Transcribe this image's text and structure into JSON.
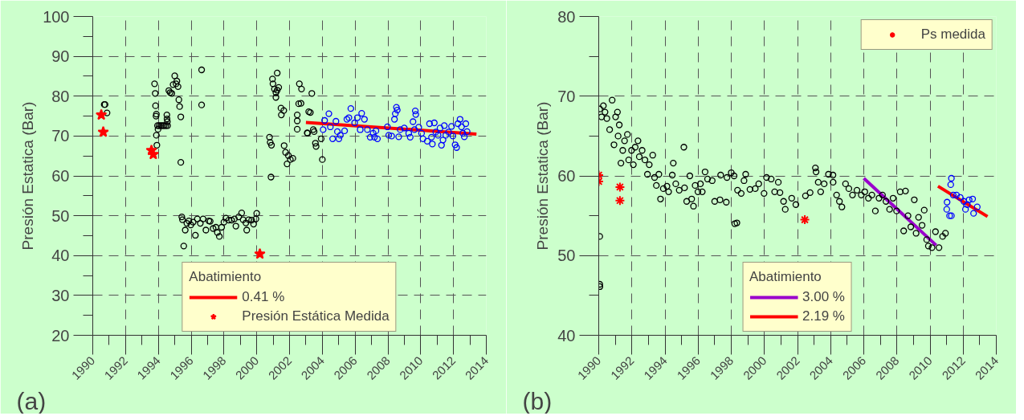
{
  "chart_data": [
    {
      "type": "scatter",
      "ylabel": "Presión Estatica (Bar)",
      "annotations": [
        "(a)"
      ],
      "xlim": [
        1990,
        2014
      ],
      "xticks": [
        1990,
        1992,
        1994,
        1996,
        1998,
        2000,
        2002,
        2004,
        2006,
        2008,
        2010,
        2012,
        2014
      ],
      "ylim": [
        20,
        100
      ],
      "yticks": [
        20,
        30,
        40,
        50,
        60,
        70,
        80,
        90,
        100
      ],
      "grid": true,
      "legend": "bottom",
      "legend_title": "Abatimiento",
      "series": [
        {
          "marker": "circle",
          "color": "#000000",
          "x": [
            1990.7,
            1990.75,
            1990.87,
            1993.77,
            1993.81,
            1993.83,
            1993.86,
            1993.88,
            1993.95,
            1994.05,
            1994.15,
            1994.25,
            1994.35,
            1994.45,
            1994.56,
            1993.98,
            1993.88,
            1993.91,
            1994.52,
            1994.53,
            1994.55,
            1994.64,
            1994.72,
            1994.82,
            1995.0,
            1995.13,
            1995.08,
            1994.9,
            1995.2,
            1995.25,
            1995.3,
            1995.37,
            1995.37,
            1996.64,
            1996.64,
            1995.43,
            1995.47,
            1995.55,
            1995.64,
            1995.74,
            1995.86,
            1995.98,
            1996.12,
            1996.26,
            1996.38,
            1996.56,
            1996.73,
            1996.9,
            1997.08,
            1997.16,
            1997.34,
            1997.51,
            1997.6,
            1997.72,
            1997.86,
            1998.0,
            1998.12,
            1998.3,
            1998.47,
            1998.64,
            1998.73,
            1998.9,
            1999.08,
            1999.17,
            1999.34,
            1999.39,
            1999.51,
            1999.69,
            1999.81,
            1999.95,
            2000.0,
            2000.78,
            2000.82,
            2000.9,
            2000.87,
            2000.96,
            2001.25,
            2000.99,
            2001.08,
            2001.17,
            2001.25,
            2001.34,
            2001.17,
            2001.48,
            2001.65,
            2001.5,
            2001.67,
            2001.76,
            2001.85,
            2001.93,
            2002.05,
            2002.2,
            2002.6,
            2002.73,
            2002.56,
            2002.7,
            2002.47,
            2002.47,
            2002.47,
            2003.08,
            2003.17,
            2003.36,
            2003.27,
            2003.1,
            2003.45,
            2003.5,
            2003.58,
            2003.62,
            2003.93,
            2004.0
          ],
          "values": [
            77.9,
            77.9,
            75.8,
            83.1,
            80.7,
            77.6,
            75.0,
            75.5,
            72.6,
            72.6,
            72.6,
            72.6,
            72.6,
            72.6,
            72.6,
            71.7,
            70.2,
            67.7,
            75.3,
            74.3,
            73.6,
            81.4,
            80.9,
            80.7,
            85.1,
            83.8,
            83.1,
            82.9,
            82.4,
            79.1,
            77.4,
            74.8,
            63.4,
            86.6,
            77.8,
            49.7,
            49.0,
            42.4,
            46.4,
            48.1,
            48.7,
            47.7,
            48.4,
            45.1,
            49.2,
            48.1,
            49.2,
            46.4,
            48.7,
            48.6,
            46.8,
            47.1,
            45.8,
            44.8,
            47.1,
            48.4,
            49.4,
            48.9,
            48.9,
            49.2,
            47.4,
            49.7,
            50.7,
            49.0,
            48.2,
            46.4,
            49.0,
            48.9,
            47.9,
            49.2,
            50.6,
            69.7,
            68.4,
            67.7,
            59.7,
            84.3,
            85.8,
            83.1,
            81.8,
            80.9,
            81.5,
            82.2,
            79.7,
            77.0,
            76.4,
            75.3,
            67.6,
            65.9,
            63.0,
            65.1,
            64.1,
            64.4,
            83.1,
            81.8,
            78.1,
            78.2,
            75.3,
            73.8,
            71.7,
            70.8,
            76.1,
            80.7,
            75.9,
            70.7,
            71.6,
            71.1,
            68.2,
            67.4,
            69.3,
            64.1
          ]
        },
        {
          "marker": "circle",
          "color": "#0000ff",
          "x": [
            2004.14,
            2004.4,
            2004.05,
            2004.49,
            2004.63,
            2004.83,
            2004.92,
            2005.1,
            2005.01,
            2005.36,
            2005.5,
            2005.62,
            2005.74,
            2005.97,
            2006.14,
            2006.4,
            2006.31,
            2006.57,
            2006.75,
            2006.92,
            2007.1,
            2007.27,
            2007.36,
            2007.18,
            2007.97,
            2008.05,
            2008.23,
            2008.4,
            2008.45,
            2008.52,
            2008.57,
            2008.66,
            2008.75,
            2009.0,
            2009.27,
            2009.36,
            2009.53,
            2009.67,
            2009.7,
            2009.62,
            2009.88,
            2010.05,
            2010.14,
            2010.4,
            2010.54,
            2010.66,
            2010.71,
            2010.83,
            2010.92,
            2011.06,
            2011.18,
            2011.27,
            2011.36,
            2011.44,
            2011.53,
            2011.7,
            2011.88,
            2011.96,
            2012.1,
            2012.19,
            2012.27,
            2012.4,
            2012.49,
            2012.57,
            2012.66,
            2012.75,
            2012.83
          ],
          "values": [
            73.9,
            75.6,
            71.6,
            72.3,
            69.3,
            73.7,
            71.1,
            70.2,
            69.3,
            71.3,
            74.2,
            74.6,
            76.9,
            73.3,
            74.6,
            75.7,
            71.6,
            74.2,
            71.6,
            69.7,
            70.7,
            71.3,
            69.3,
            69.7,
            72.3,
            70.2,
            70.0,
            74.2,
            75.6,
            77.2,
            76.5,
            69.8,
            71.6,
            72.0,
            70.7,
            69.7,
            73.6,
            76.3,
            75.4,
            71.6,
            72.2,
            70.7,
            69.3,
            68.7,
            73.1,
            69.7,
            68.0,
            73.3,
            71.0,
            70.2,
            72.0,
            67.7,
            69.0,
            72.6,
            70.2,
            71.0,
            72.4,
            70.0,
            67.8,
            67.1,
            73.1,
            74.2,
            72.3,
            70.7,
            69.8,
            73.1,
            71.1
          ]
        },
        {
          "marker": "star",
          "name": "Presión Estática Medida",
          "color": "#ff0000",
          "x": [
            1990.52,
            1990.64,
            1993.58,
            1993.69,
            2000.19
          ],
          "values": [
            75.3,
            71.0,
            66.4,
            65.4,
            40.4
          ]
        },
        {
          "type": "line",
          "name": "0.41 %",
          "color": "#ff0000",
          "x": [
            2003.0,
            2013.4
          ],
          "values": [
            73.4,
            70.5
          ]
        }
      ]
    },
    {
      "type": "scatter",
      "ylabel": "Presión Estatica (Bar)",
      "annotations": [
        "(b)"
      ],
      "xlim": [
        1990,
        2014
      ],
      "xticks": [
        1990,
        1992,
        1994,
        1996,
        1998,
        2000,
        2002,
        2004,
        2006,
        2008,
        2010,
        2012,
        2014
      ],
      "ylim": [
        40,
        80
      ],
      "yticks": [
        40,
        50,
        60,
        70,
        80
      ],
      "grid": true,
      "legend": [
        "top right",
        "bottom"
      ],
      "legend_title": "Abatimiento",
      "series": [
        {
          "marker": "circle",
          "color": "#000000",
          "x": [
            1990.06,
            1990.06,
            1990.07,
            1990.06,
            1990.28,
            1990.17,
            1990.38,
            1990.49,
            1990.66,
            1990.81,
            1990.92,
            1991.02,
            1991.13,
            1991.24,
            1991.17,
            1991.34,
            1991.45,
            1991.56,
            1991.73,
            1991.81,
            1991.98,
            1992.09,
            1992.2,
            1992.37,
            1992.45,
            1992.62,
            1992.79,
            1992.94,
            1993.05,
            1993.26,
            1993.37,
            1993.48,
            1993.63,
            1993.73,
            1993.9,
            1994.12,
            1994.22,
            1994.44,
            1994.5,
            1994.65,
            1994.86,
            1995.14,
            1995.18,
            1995.31,
            1995.5,
            1995.61,
            1995.72,
            1995.82,
            1995.99,
            1996.14,
            1996.25,
            1996.42,
            1996.57,
            1996.85,
            1997.0,
            1997.32,
            1997.36,
            1997.7,
            1997.74,
            1998.0,
            1998.17,
            1998.21,
            1998.34,
            1998.38,
            1998.6,
            1998.77,
            1998.87,
            1999.13,
            1999.45,
            1999.66,
            1999.98,
            2000.13,
            2000.41,
            2000.62,
            2000.84,
            2000.94,
            2001.16,
            2001.26,
            2001.65,
            2001.9,
            2002.48,
            2002.76,
            2003.08,
            2003.12,
            2003.25,
            2003.4,
            2003.61,
            2003.87,
            2004.14,
            2004.15,
            2004.36,
            2004.53,
            2004.68,
            2004.9,
            2005.1,
            2005.32,
            2005.59,
            2005.85,
            2006.06,
            2006.28,
            2006.49,
            2006.7,
            2006.92,
            2007.13,
            2007.34,
            2007.56,
            2007.77,
            2007.98,
            2008.2,
            2008.41,
            2008.52,
            2008.67,
            2008.84,
            2009.05,
            2009.16,
            2009.31,
            2009.52,
            2009.65,
            2009.8,
            2009.9,
            2010.12,
            2010.33,
            2010.54,
            2010.76,
            2010.93
          ],
          "values": [
            52.4,
            46.4,
            46.1,
            68.4,
            68.8,
            67.4,
            68.0,
            67.2,
            65.8,
            69.5,
            63.9,
            67.4,
            68.0,
            66.4,
            65.0,
            61.6,
            63.2,
            64.4,
            65.2,
            62.0,
            63.2,
            61.4,
            63.6,
            64.4,
            62.4,
            63.2,
            62.0,
            60.2,
            61.4,
            62.6,
            59.8,
            58.8,
            60.2,
            57.1,
            58.4,
            58.7,
            58.0,
            60.1,
            61.6,
            59.0,
            58.2,
            63.6,
            58.5,
            56.8,
            60.0,
            57.1,
            56.2,
            58.8,
            58.0,
            59.0,
            58.0,
            60.5,
            59.6,
            59.4,
            56.8,
            57.0,
            60.1,
            56.7,
            59.8,
            60.4,
            60.0,
            54.0,
            54.1,
            58.2,
            57.8,
            59.4,
            60.2,
            58.3,
            58.4,
            59.0,
            57.8,
            59.8,
            59.6,
            58.0,
            59.2,
            57.9,
            56.8,
            55.8,
            57.2,
            56.4,
            57.5,
            57.9,
            61.0,
            60.5,
            59.2,
            58.0,
            59.0,
            60.2,
            60.1,
            59.2,
            57.6,
            56.8,
            56.1,
            59.0,
            58.4,
            57.6,
            58.2,
            57.6,
            58.0,
            57.2,
            57.6,
            55.6,
            57.2,
            57.6,
            56.8,
            55.8,
            57.2,
            55.6,
            58.0,
            53.1,
            58.1,
            55.0,
            53.6,
            57.0,
            52.8,
            54.8,
            53.8,
            55.7,
            52.0,
            51.2,
            51.0,
            53.0,
            51.0,
            52.4,
            52.8
          ]
        },
        {
          "marker": "circle",
          "color": "#0000ff",
          "x": [
            2011.29,
            2011.25,
            2011.01,
            2011.18,
            2011.03,
            2011.4,
            2011.6,
            2011.82,
            2012.04,
            2012.14,
            2012.36,
            2012.57,
            2012.63,
            2012.85,
            2012.25,
            2011.29
          ],
          "values": [
            59.7,
            58.9,
            55.8,
            55.0,
            56.7,
            57.6,
            57.6,
            57.3,
            56.8,
            55.8,
            57.0,
            57.1,
            55.3,
            56.1,
            56.4,
            55.0
          ]
        },
        {
          "marker": "cross",
          "name": "Ps medida",
          "color": "#ff0000",
          "x": [
            1990.0,
            1990.0,
            1991.28,
            1991.28,
            2002.44
          ],
          "values": [
            60.1,
            59.3,
            58.6,
            56.9,
            54.5
          ]
        },
        {
          "type": "line",
          "name": "3.00 %",
          "color": "#9900cc",
          "x": [
            2006.0,
            2010.37
          ],
          "values": [
            59.7,
            51.3
          ]
        },
        {
          "type": "line",
          "name": "2.19 %",
          "color": "#ff0000",
          "x": [
            2010.48,
            2013.47
          ],
          "values": [
            58.7,
            54.9
          ]
        }
      ]
    }
  ]
}
